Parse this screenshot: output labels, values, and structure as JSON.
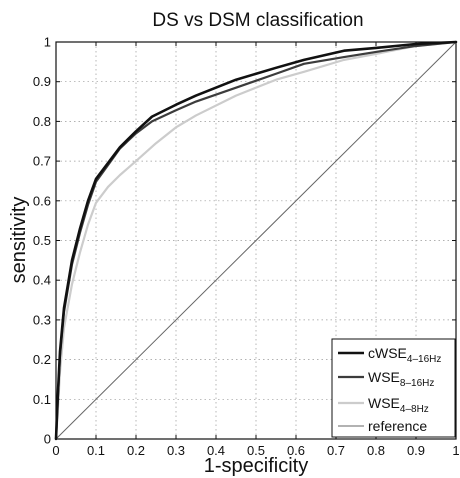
{
  "chart_data": {
    "type": "line",
    "title": "DS vs DSM classification",
    "xlabel": "1-specificity",
    "ylabel": "sensitivity",
    "xlim": [
      0,
      1
    ],
    "ylim": [
      0,
      1
    ],
    "xticks": [
      "0",
      "0.1",
      "0.2",
      "0.3",
      "0.4",
      "0.5",
      "0.6",
      "0.7",
      "0.8",
      "0.9",
      "1"
    ],
    "yticks": [
      "0",
      "0.1",
      "0.2",
      "0.3",
      "0.4",
      "0.5",
      "0.6",
      "0.7",
      "0.8",
      "0.9",
      "1"
    ],
    "grid": true,
    "legend_position": "bottom-right",
    "series": [
      {
        "name": "cWSE",
        "subscript": "4–16Hz",
        "color": "#111111",
        "x": [
          0,
          0.005,
          0.01,
          0.02,
          0.04,
          0.06,
          0.08,
          0.1,
          0.13,
          0.16,
          0.2,
          0.24,
          0.3,
          0.35,
          0.45,
          0.55,
          0.62,
          0.72,
          0.8,
          0.9,
          1
        ],
        "y": [
          0,
          0.12,
          0.22,
          0.33,
          0.45,
          0.53,
          0.6,
          0.655,
          0.695,
          0.735,
          0.775,
          0.812,
          0.842,
          0.865,
          0.905,
          0.935,
          0.955,
          0.978,
          0.985,
          0.995,
          1
        ]
      },
      {
        "name": "WSE",
        "subscript": "8–16Hz",
        "color": "#3c3c3c",
        "x": [
          0,
          0.005,
          0.01,
          0.02,
          0.04,
          0.06,
          0.08,
          0.1,
          0.13,
          0.16,
          0.2,
          0.24,
          0.3,
          0.35,
          0.45,
          0.55,
          0.62,
          0.72,
          0.8,
          0.9,
          1
        ],
        "y": [
          0,
          0.11,
          0.21,
          0.32,
          0.44,
          0.52,
          0.59,
          0.648,
          0.69,
          0.732,
          0.77,
          0.8,
          0.828,
          0.85,
          0.885,
          0.92,
          0.945,
          0.962,
          0.975,
          0.99,
          1
        ]
      },
      {
        "name": "WSE",
        "subscript": "4–8Hz",
        "color": "#cccccc",
        "x": [
          0,
          0.005,
          0.01,
          0.02,
          0.04,
          0.06,
          0.08,
          0.1,
          0.13,
          0.16,
          0.2,
          0.25,
          0.3,
          0.35,
          0.45,
          0.55,
          0.62,
          0.72,
          0.8,
          0.9,
          1
        ],
        "y": [
          0,
          0.08,
          0.17,
          0.28,
          0.39,
          0.47,
          0.54,
          0.595,
          0.635,
          0.665,
          0.7,
          0.745,
          0.785,
          0.815,
          0.865,
          0.905,
          0.925,
          0.955,
          0.97,
          0.99,
          1
        ]
      },
      {
        "name": "reference",
        "color": "#666666",
        "x": [
          0,
          1
        ],
        "y": [
          0,
          1
        ]
      }
    ]
  }
}
